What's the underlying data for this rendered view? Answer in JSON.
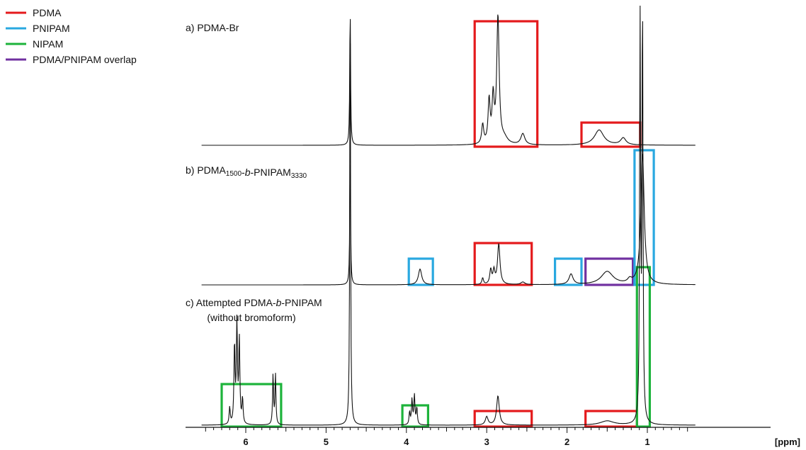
{
  "chart_data": {
    "type": "line",
    "xlabel": "[ppm]",
    "x_reversed": true,
    "xlim": [
      0.4,
      6.55
    ],
    "xticks": [
      6,
      5,
      4,
      3,
      2,
      1
    ],
    "legend": {
      "placement": "top-left",
      "entries": [
        {
          "name": "PDMA",
          "color": "#e41a1c"
        },
        {
          "name": "PNIPAM",
          "color": "#29a8e0"
        },
        {
          "name": "NIPAM",
          "color": "#1db33b"
        },
        {
          "name": "PDMA/PNIPAM overlap",
          "color": "#7030a0"
        }
      ]
    },
    "series": [
      {
        "label": "a) PDMA-Br",
        "label_parts": [
          {
            "t": "a) PDMA-Br"
          }
        ],
        "peaks": [
          {
            "ppm": 4.7,
            "height": 1.0,
            "width": 0.006
          },
          {
            "ppm": 3.05,
            "height": 0.14,
            "width": 0.015
          },
          {
            "ppm": 2.97,
            "height": 0.31,
            "width": 0.015
          },
          {
            "ppm": 2.92,
            "height": 0.32,
            "width": 0.015
          },
          {
            "ppm": 2.86,
            "height": 0.92,
            "width": 0.018
          },
          {
            "ppm": 2.78,
            "height": 0.04,
            "width": 0.05
          },
          {
            "ppm": 2.55,
            "height": 0.08,
            "width": 0.03
          },
          {
            "ppm": 1.6,
            "height": 0.11,
            "width": 0.07
          },
          {
            "ppm": 1.3,
            "height": 0.05,
            "width": 0.04
          }
        ]
      },
      {
        "label": "b) PDMA1500-b-PNIPAM3330",
        "label_parts": [
          {
            "t": "b) PDMA"
          },
          {
            "t": "1500",
            "sub": true
          },
          {
            "t": "-"
          },
          {
            "t": "b",
            "italic": true
          },
          {
            "t": "-PNIPAM"
          },
          {
            "t": "3330",
            "sub": true
          }
        ],
        "peaks": [
          {
            "ppm": 4.7,
            "height": 1.0,
            "width": 0.006
          },
          {
            "ppm": 3.83,
            "height": 0.12,
            "width": 0.025
          },
          {
            "ppm": 3.05,
            "height": 0.05,
            "width": 0.012
          },
          {
            "ppm": 2.95,
            "height": 0.11,
            "width": 0.014
          },
          {
            "ppm": 2.91,
            "height": 0.1,
            "width": 0.014
          },
          {
            "ppm": 2.85,
            "height": 0.31,
            "width": 0.018
          },
          {
            "ppm": 2.55,
            "height": 0.02,
            "width": 0.03
          },
          {
            "ppm": 1.95,
            "height": 0.08,
            "width": 0.03
          },
          {
            "ppm": 1.5,
            "height": 0.1,
            "width": 0.09
          },
          {
            "ppm": 1.22,
            "height": 0.03,
            "width": 0.03
          },
          {
            "ppm": 1.06,
            "height": 1.0,
            "width": 0.025
          }
        ]
      },
      {
        "label": "c) Attempted PDMA-b-PNIPAM (without bromoform)",
        "label_parts": [
          {
            "t": "c) Attempted PDMA-"
          },
          {
            "t": "b",
            "italic": true
          },
          {
            "t": "-PNIPAM"
          }
        ],
        "label_line2": "(without bromoform)",
        "peaks": [
          {
            "ppm": 6.2,
            "height": 0.04,
            "width": 0.008
          },
          {
            "ppm": 6.14,
            "height": 0.19,
            "width": 0.008
          },
          {
            "ppm": 6.11,
            "height": 0.24,
            "width": 0.008
          },
          {
            "ppm": 6.08,
            "height": 0.2,
            "width": 0.008
          },
          {
            "ppm": 6.04,
            "height": 0.06,
            "width": 0.008
          },
          {
            "ppm": 5.66,
            "height": 0.12,
            "width": 0.007
          },
          {
            "ppm": 5.63,
            "height": 0.12,
            "width": 0.007
          },
          {
            "ppm": 4.7,
            "height": 1.0,
            "width": 0.006
          },
          {
            "ppm": 3.96,
            "height": 0.03,
            "width": 0.008
          },
          {
            "ppm": 3.93,
            "height": 0.06,
            "width": 0.008
          },
          {
            "ppm": 3.9,
            "height": 0.07,
            "width": 0.008
          },
          {
            "ppm": 3.87,
            "height": 0.04,
            "width": 0.008
          },
          {
            "ppm": 3.0,
            "height": 0.02,
            "width": 0.02
          },
          {
            "ppm": 2.86,
            "height": 0.07,
            "width": 0.02
          },
          {
            "ppm": 1.5,
            "height": 0.01,
            "width": 0.1
          },
          {
            "ppm": 1.09,
            "height": 1.0,
            "width": 0.007
          },
          {
            "ppm": 1.06,
            "height": 1.0,
            "width": 0.007
          }
        ]
      }
    ],
    "highlight_regions": [
      {
        "series": 0,
        "class": "PDMA",
        "ppm_range": [
          3.15,
          2.37
        ]
      },
      {
        "series": 0,
        "class": "PDMA",
        "ppm_range": [
          1.82,
          1.09
        ]
      },
      {
        "series": 1,
        "class": "PNIPAM",
        "ppm_range": [
          3.97,
          3.67
        ]
      },
      {
        "series": 1,
        "class": "PDMA",
        "ppm_range": [
          3.15,
          2.44
        ]
      },
      {
        "series": 1,
        "class": "PNIPAM",
        "ppm_range": [
          2.15,
          1.82
        ]
      },
      {
        "series": 1,
        "class": "PDMA/PNIPAM overlap",
        "ppm_range": [
          1.77,
          1.18
        ]
      },
      {
        "series": 1,
        "class": "PNIPAM",
        "ppm_range": [
          1.16,
          0.92
        ]
      },
      {
        "series": 2,
        "class": "NIPAM",
        "ppm_range": [
          6.3,
          5.56
        ]
      },
      {
        "series": 2,
        "class": "NIPAM",
        "ppm_range": [
          4.05,
          3.73
        ]
      },
      {
        "series": 2,
        "class": "PDMA",
        "ppm_range": [
          3.15,
          2.44
        ]
      },
      {
        "series": 2,
        "class": "PDMA",
        "ppm_range": [
          1.77,
          1.13
        ]
      },
      {
        "series": 2,
        "class": "NIPAM",
        "ppm_range": [
          1.13,
          0.97
        ]
      }
    ]
  }
}
